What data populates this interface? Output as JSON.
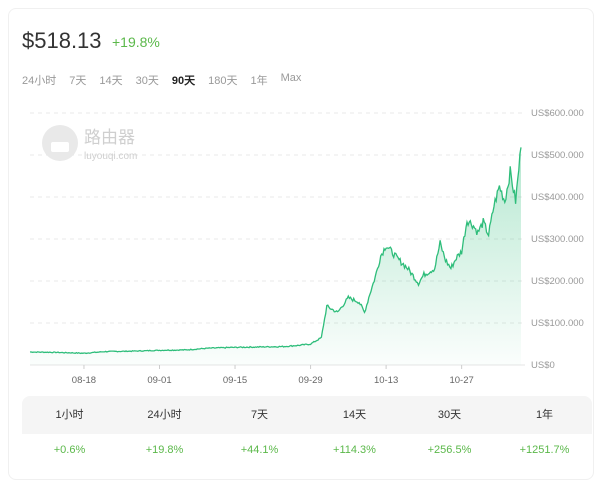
{
  "header": {
    "price": "$518.13",
    "change": "+19.8%"
  },
  "tabs": [
    {
      "label": "24小时"
    },
    {
      "label": "7天"
    },
    {
      "label": "14天"
    },
    {
      "label": "30天"
    },
    {
      "label": "90天",
      "active": true
    },
    {
      "label": "180天"
    },
    {
      "label": "1年"
    },
    {
      "label": "Max"
    }
  ],
  "colors": {
    "line": "#2ebd7a",
    "positive": "#5bb84a"
  },
  "chart_data": {
    "type": "area",
    "title": "",
    "xlabel": "",
    "ylabel": "",
    "ylim": [
      0,
      600
    ],
    "yticks": [
      {
        "v": 0,
        "label": "US$0"
      },
      {
        "v": 100,
        "label": "US$100.000"
      },
      {
        "v": 200,
        "label": "US$200.000"
      },
      {
        "v": 300,
        "label": "US$300.000"
      },
      {
        "v": 400,
        "label": "US$400.000"
      },
      {
        "v": 500,
        "label": "US$500.000"
      },
      {
        "v": 600,
        "label": "US$600.000"
      }
    ],
    "xlim": [
      "08-08",
      "11-07"
    ],
    "xticks": [
      "08-18",
      "09-01",
      "09-15",
      "09-29",
      "10-13",
      "10-27"
    ],
    "grid": true,
    "points": [
      [
        "08-08",
        31
      ],
      [
        "08-13",
        30
      ],
      [
        "08-18",
        28
      ],
      [
        "08-22",
        32
      ],
      [
        "08-27",
        33
      ],
      [
        "09-01",
        35
      ],
      [
        "09-06",
        36
      ],
      [
        "09-10",
        40
      ],
      [
        "09-15",
        42
      ],
      [
        "09-20",
        43
      ],
      [
        "09-24",
        44
      ],
      [
        "09-27",
        47
      ],
      [
        "09-29",
        50
      ],
      [
        "10-01",
        65
      ],
      [
        "10-02",
        140
      ],
      [
        "10-04",
        125
      ],
      [
        "10-06",
        160
      ],
      [
        "10-08",
        150
      ],
      [
        "10-09",
        125
      ],
      [
        "10-10",
        170
      ],
      [
        "10-11",
        210
      ],
      [
        "10-12",
        260
      ],
      [
        "10-13",
        285
      ],
      [
        "10-15",
        255
      ],
      [
        "10-17",
        230
      ],
      [
        "10-19",
        195
      ],
      [
        "10-20",
        215
      ],
      [
        "10-22",
        230
      ],
      [
        "10-23",
        290
      ],
      [
        "10-24",
        250
      ],
      [
        "10-25",
        230
      ],
      [
        "10-26",
        255
      ],
      [
        "10-27",
        270
      ],
      [
        "10-28",
        345
      ],
      [
        "10-29",
        335
      ],
      [
        "10-30",
        315
      ],
      [
        "10-31",
        340
      ],
      [
        "11-01",
        310
      ],
      [
        "11-02",
        380
      ],
      [
        "11-03",
        425
      ],
      [
        "11-04",
        390
      ],
      [
        "11-05",
        460
      ],
      [
        "11-06",
        390
      ],
      [
        "11-07",
        518.13
      ]
    ]
  },
  "stats": {
    "periods": [
      "1小时",
      "24小时",
      "7天",
      "14天",
      "30天",
      "1年"
    ],
    "values": [
      "+0.6%",
      "+19.8%",
      "+44.1%",
      "+114.3%",
      "+256.5%",
      "+1251.7%"
    ]
  },
  "watermark": {
    "text": "路由器",
    "sub": "luyouqi.com"
  }
}
